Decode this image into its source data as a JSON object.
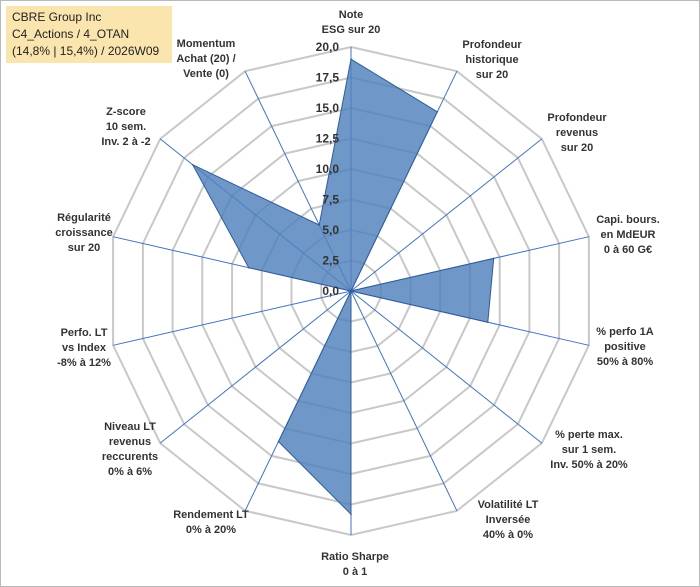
{
  "header": {
    "line1": "CBRE Group Inc",
    "line2": "C4_Actions / 4_OTAN",
    "line3": "(14,8% | 15,4%) / 2026W09"
  },
  "colors": {
    "fill": "#4f81bd",
    "stroke": "#2f5c99",
    "grid": "#c8c8c8",
    "spoke": "#4472c4"
  },
  "chart_data": {
    "type": "radar",
    "title": "CBRE Group Inc",
    "rlim": [
      0,
      20
    ],
    "ticks": [
      "0,0",
      "2,5",
      "5,0",
      "7,5",
      "10,0",
      "12,5",
      "15,0",
      "17,5",
      "20,0"
    ],
    "categories": [
      [
        "Note",
        "ESG sur 20"
      ],
      [
        "Profondeur",
        "historique",
        "sur 20"
      ],
      [
        "Profondeur",
        "revenus",
        "sur 20"
      ],
      [
        "Capi. bours.",
        "en MdEUR",
        "0 à 60 G€"
      ],
      [
        "% perfo 1A",
        "positive",
        "50% à 80%"
      ],
      [
        "% perte max.",
        "sur 1 sem.",
        "Inv. 50% à 20%"
      ],
      [
        "Volatilité LT",
        "Inversée",
        "40% à 0%"
      ],
      [
        "Ratio Sharpe",
        "0 à 1"
      ],
      [
        "Rendement LT",
        "0% à 20%"
      ],
      [
        "Niveau LT",
        "revenus",
        "reccurents",
        "0% à 6%"
      ],
      [
        "Perfo. LT",
        "vs Index",
        "-8% à 12%"
      ],
      [
        "Régularité",
        "croissance",
        "sur 20"
      ],
      [
        "Z-score",
        "10 sem.",
        "Inv. 2 à -2"
      ],
      [
        "Momentum",
        "Achat (20) /",
        "Vente (0)"
      ]
    ],
    "series": [
      {
        "name": "CBRE Group Inc",
        "values": [
          19.0,
          16.3,
          0.0,
          12.0,
          11.5,
          0.0,
          0.0,
          18.3,
          13.7,
          0.0,
          0.0,
          8.6,
          16.6,
          6.0
        ]
      }
    ]
  }
}
